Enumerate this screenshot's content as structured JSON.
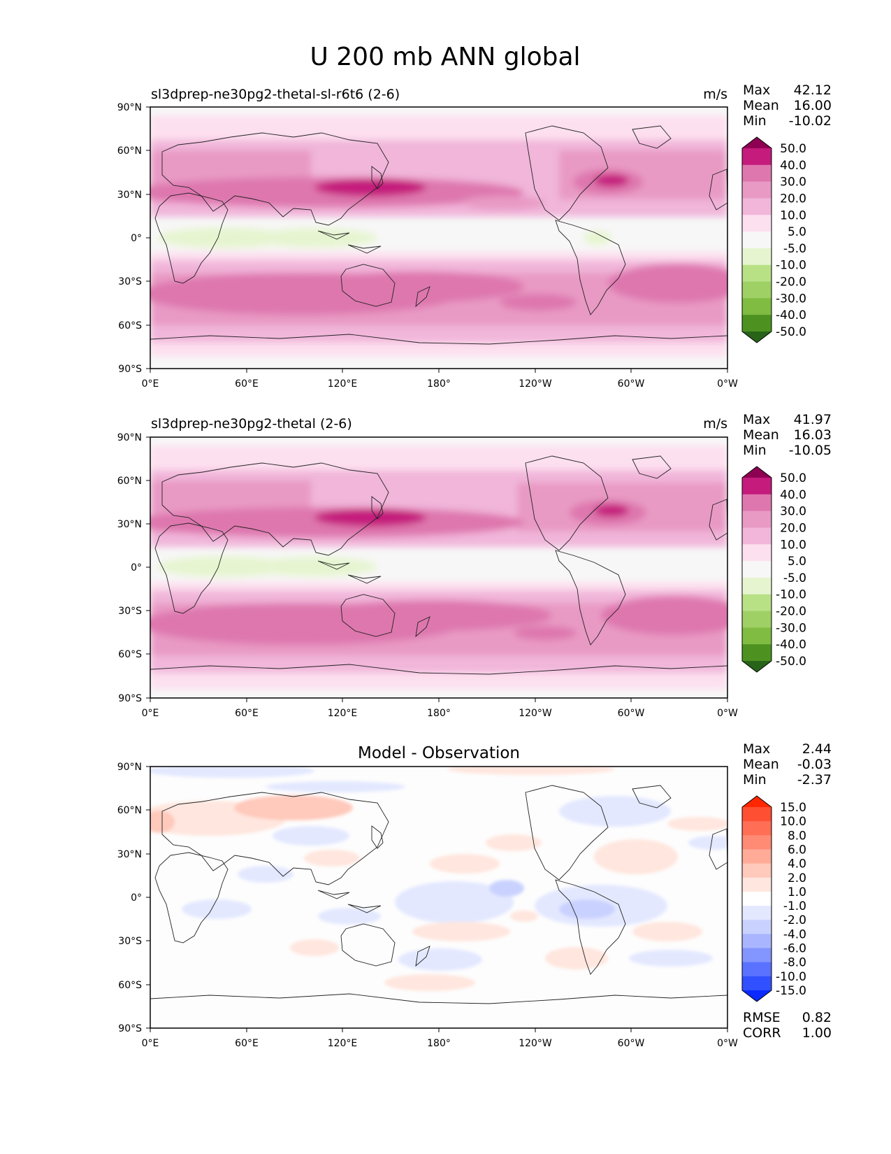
{
  "figure": {
    "title": "U 200 mb ANN global"
  },
  "axis_ticks": {
    "lat": [
      "90°N",
      "60°N",
      "30°N",
      "0°",
      "30°S",
      "60°S",
      "90°S"
    ],
    "lon": [
      "0°E",
      "60°E",
      "120°E",
      "180°",
      "120°W",
      "60°W",
      "0°W"
    ]
  },
  "panels": [
    {
      "title": "sl3dprep-ne30pg2-thetal-sl-r6t6 (2-6)",
      "units": "m/s",
      "stats": [
        {
          "label": "Max",
          "value": "42.12"
        },
        {
          "label": "Mean",
          "value": "16.00"
        },
        {
          "label": "Min",
          "value": "-10.02"
        }
      ],
      "colorbar": {
        "labels": [
          "50.0",
          "40.0",
          "30.0",
          "20.0",
          "10.0",
          "5.0",
          "-5.0",
          "-10.0",
          "-20.0",
          "-30.0",
          "-40.0",
          "-50.0"
        ],
        "colors": [
          "#8e0152",
          "#c51b7d",
          "#de77ae",
          "#e89ac4",
          "#f1b6da",
          "#fde0ef",
          "#f7f7f7",
          "#e6f5d0",
          "#b8e186",
          "#9fd066",
          "#7fbc41",
          "#4d9221",
          "#276419"
        ]
      }
    },
    {
      "title": "sl3dprep-ne30pg2-thetal (2-6)",
      "units": "m/s",
      "stats": [
        {
          "label": "Max",
          "value": "41.97"
        },
        {
          "label": "Mean",
          "value": "16.03"
        },
        {
          "label": "Min",
          "value": "-10.05"
        }
      ],
      "colorbar": {
        "labels": [
          "50.0",
          "40.0",
          "30.0",
          "20.0",
          "10.0",
          "5.0",
          "-5.0",
          "-10.0",
          "-20.0",
          "-30.0",
          "-40.0",
          "-50.0"
        ],
        "colors": [
          "#8e0152",
          "#c51b7d",
          "#de77ae",
          "#e89ac4",
          "#f1b6da",
          "#fde0ef",
          "#f7f7f7",
          "#e6f5d0",
          "#b8e186",
          "#9fd066",
          "#7fbc41",
          "#4d9221",
          "#276419"
        ]
      }
    },
    {
      "title": "Model - Observation",
      "units": "",
      "stats": [
        {
          "label": "Max",
          "value": "2.44"
        },
        {
          "label": "Mean",
          "value": "-0.03"
        },
        {
          "label": "Min",
          "value": "-2.37"
        }
      ],
      "extra_stats": [
        {
          "label": "RMSE",
          "value": "0.82"
        },
        {
          "label": "CORR",
          "value": "1.00"
        }
      ],
      "colorbar": {
        "labels": [
          "15.0",
          "10.0",
          "8.0",
          "6.0",
          "4.0",
          "2.0",
          "1.0",
          "-1.0",
          "-2.0",
          "-4.0",
          "-6.0",
          "-8.0",
          "-10.0",
          "-15.0"
        ],
        "colors": [
          "#ff2600",
          "#ff4f33",
          "#ff6e55",
          "#ff8b75",
          "#ffab98",
          "#ffc9bb",
          "#ffe6de",
          "#ffffff",
          "#e3e8ff",
          "#c9d2ff",
          "#a9b6ff",
          "#8395ff",
          "#5a72ff",
          "#3150ff",
          "#0a2aff"
        ]
      }
    }
  ],
  "chart_data": [
    {
      "type": "heatmap",
      "title": "sl3dprep-ne30pg2-thetal-sl-r6t6 (2-6)",
      "units": "m/s",
      "x_ticks": [
        "0°E",
        "60°E",
        "120°E",
        "180°",
        "120°W",
        "60°W",
        "0°W"
      ],
      "y_ticks": [
        "90°N",
        "60°N",
        "30°N",
        "0°",
        "30°S",
        "60°S",
        "90°S"
      ],
      "xlim": [
        0,
        360
      ],
      "ylim": [
        -90,
        90
      ],
      "levels": [
        -50,
        -40,
        -30,
        -20,
        -10,
        -5,
        5,
        10,
        20,
        30,
        40,
        50
      ],
      "stats": {
        "max": 42.12,
        "mean": 16.0,
        "min": -10.02
      },
      "features": [
        {
          "lon_range": [
            10,
            300
          ],
          "lat_range": [
            25,
            42
          ],
          "approx_value": 35
        },
        {
          "lon_range": [
            110,
            160
          ],
          "lat_range": [
            28,
            40
          ],
          "approx_value": 42
        },
        {
          "lon_range": [
            270,
            300
          ],
          "lat_range": [
            30,
            42
          ],
          "approx_value": 40
        },
        {
          "lon_range": [
            0,
            360
          ],
          "lat_range": [
            -55,
            -30
          ],
          "approx_value": 32
        },
        {
          "lon_range": [
            10,
            150
          ],
          "lat_range": [
            -2,
            8
          ],
          "approx_value": -8
        }
      ]
    },
    {
      "type": "heatmap",
      "title": "sl3dprep-ne30pg2-thetal (2-6)",
      "units": "m/s",
      "x_ticks": [
        "0°E",
        "60°E",
        "120°E",
        "180°",
        "120°W",
        "60°W",
        "0°W"
      ],
      "y_ticks": [
        "90°N",
        "60°N",
        "30°N",
        "0°",
        "30°S",
        "60°S",
        "90°S"
      ],
      "xlim": [
        0,
        360
      ],
      "ylim": [
        -90,
        90
      ],
      "levels": [
        -50,
        -40,
        -30,
        -20,
        -10,
        -5,
        5,
        10,
        20,
        30,
        40,
        50
      ],
      "stats": {
        "max": 41.97,
        "mean": 16.03,
        "min": -10.05
      },
      "features": [
        {
          "lon_range": [
            10,
            300
          ],
          "lat_range": [
            25,
            42
          ],
          "approx_value": 35
        },
        {
          "lon_range": [
            110,
            160
          ],
          "lat_range": [
            28,
            40
          ],
          "approx_value": 42
        },
        {
          "lon_range": [
            270,
            300
          ],
          "lat_range": [
            30,
            42
          ],
          "approx_value": 40
        },
        {
          "lon_range": [
            0,
            360
          ],
          "lat_range": [
            -55,
            -30
          ],
          "approx_value": 32
        },
        {
          "lon_range": [
            10,
            150
          ],
          "lat_range": [
            -2,
            8
          ],
          "approx_value": -8
        }
      ]
    },
    {
      "type": "heatmap",
      "title": "Model - Observation",
      "x_ticks": [
        "0°E",
        "60°E",
        "120°E",
        "180°",
        "120°W",
        "60°W",
        "0°W"
      ],
      "y_ticks": [
        "90°N",
        "60°N",
        "30°N",
        "0°",
        "30°S",
        "60°S",
        "90°S"
      ],
      "xlim": [
        0,
        360
      ],
      "ylim": [
        -90,
        90
      ],
      "levels": [
        -15,
        -10,
        -8,
        -6,
        -4,
        -2,
        -1,
        1,
        2,
        4,
        6,
        8,
        10,
        15
      ],
      "stats": {
        "max": 2.44,
        "mean": -0.03,
        "min": -2.37,
        "rmse": 0.82,
        "corr": 1.0
      },
      "features": [
        {
          "lon_range": [
            0,
            140
          ],
          "lat_range": [
            45,
            65
          ],
          "approx_value": 1.5
        },
        {
          "lon_range": [
            170,
            220
          ],
          "lat_range": [
            -5,
            10
          ],
          "approx_value": -2
        },
        {
          "lon_range": [
            255,
            300
          ],
          "lat_range": [
            -10,
            5
          ],
          "approx_value": -2
        },
        {
          "lon_range": [
            280,
            330
          ],
          "lat_range": [
            -35,
            -20
          ],
          "approx_value": 1.5
        },
        {
          "lon_range": [
            150,
            200
          ],
          "lat_range": [
            -65,
            -55
          ],
          "approx_value": 1.2
        }
      ]
    }
  ]
}
